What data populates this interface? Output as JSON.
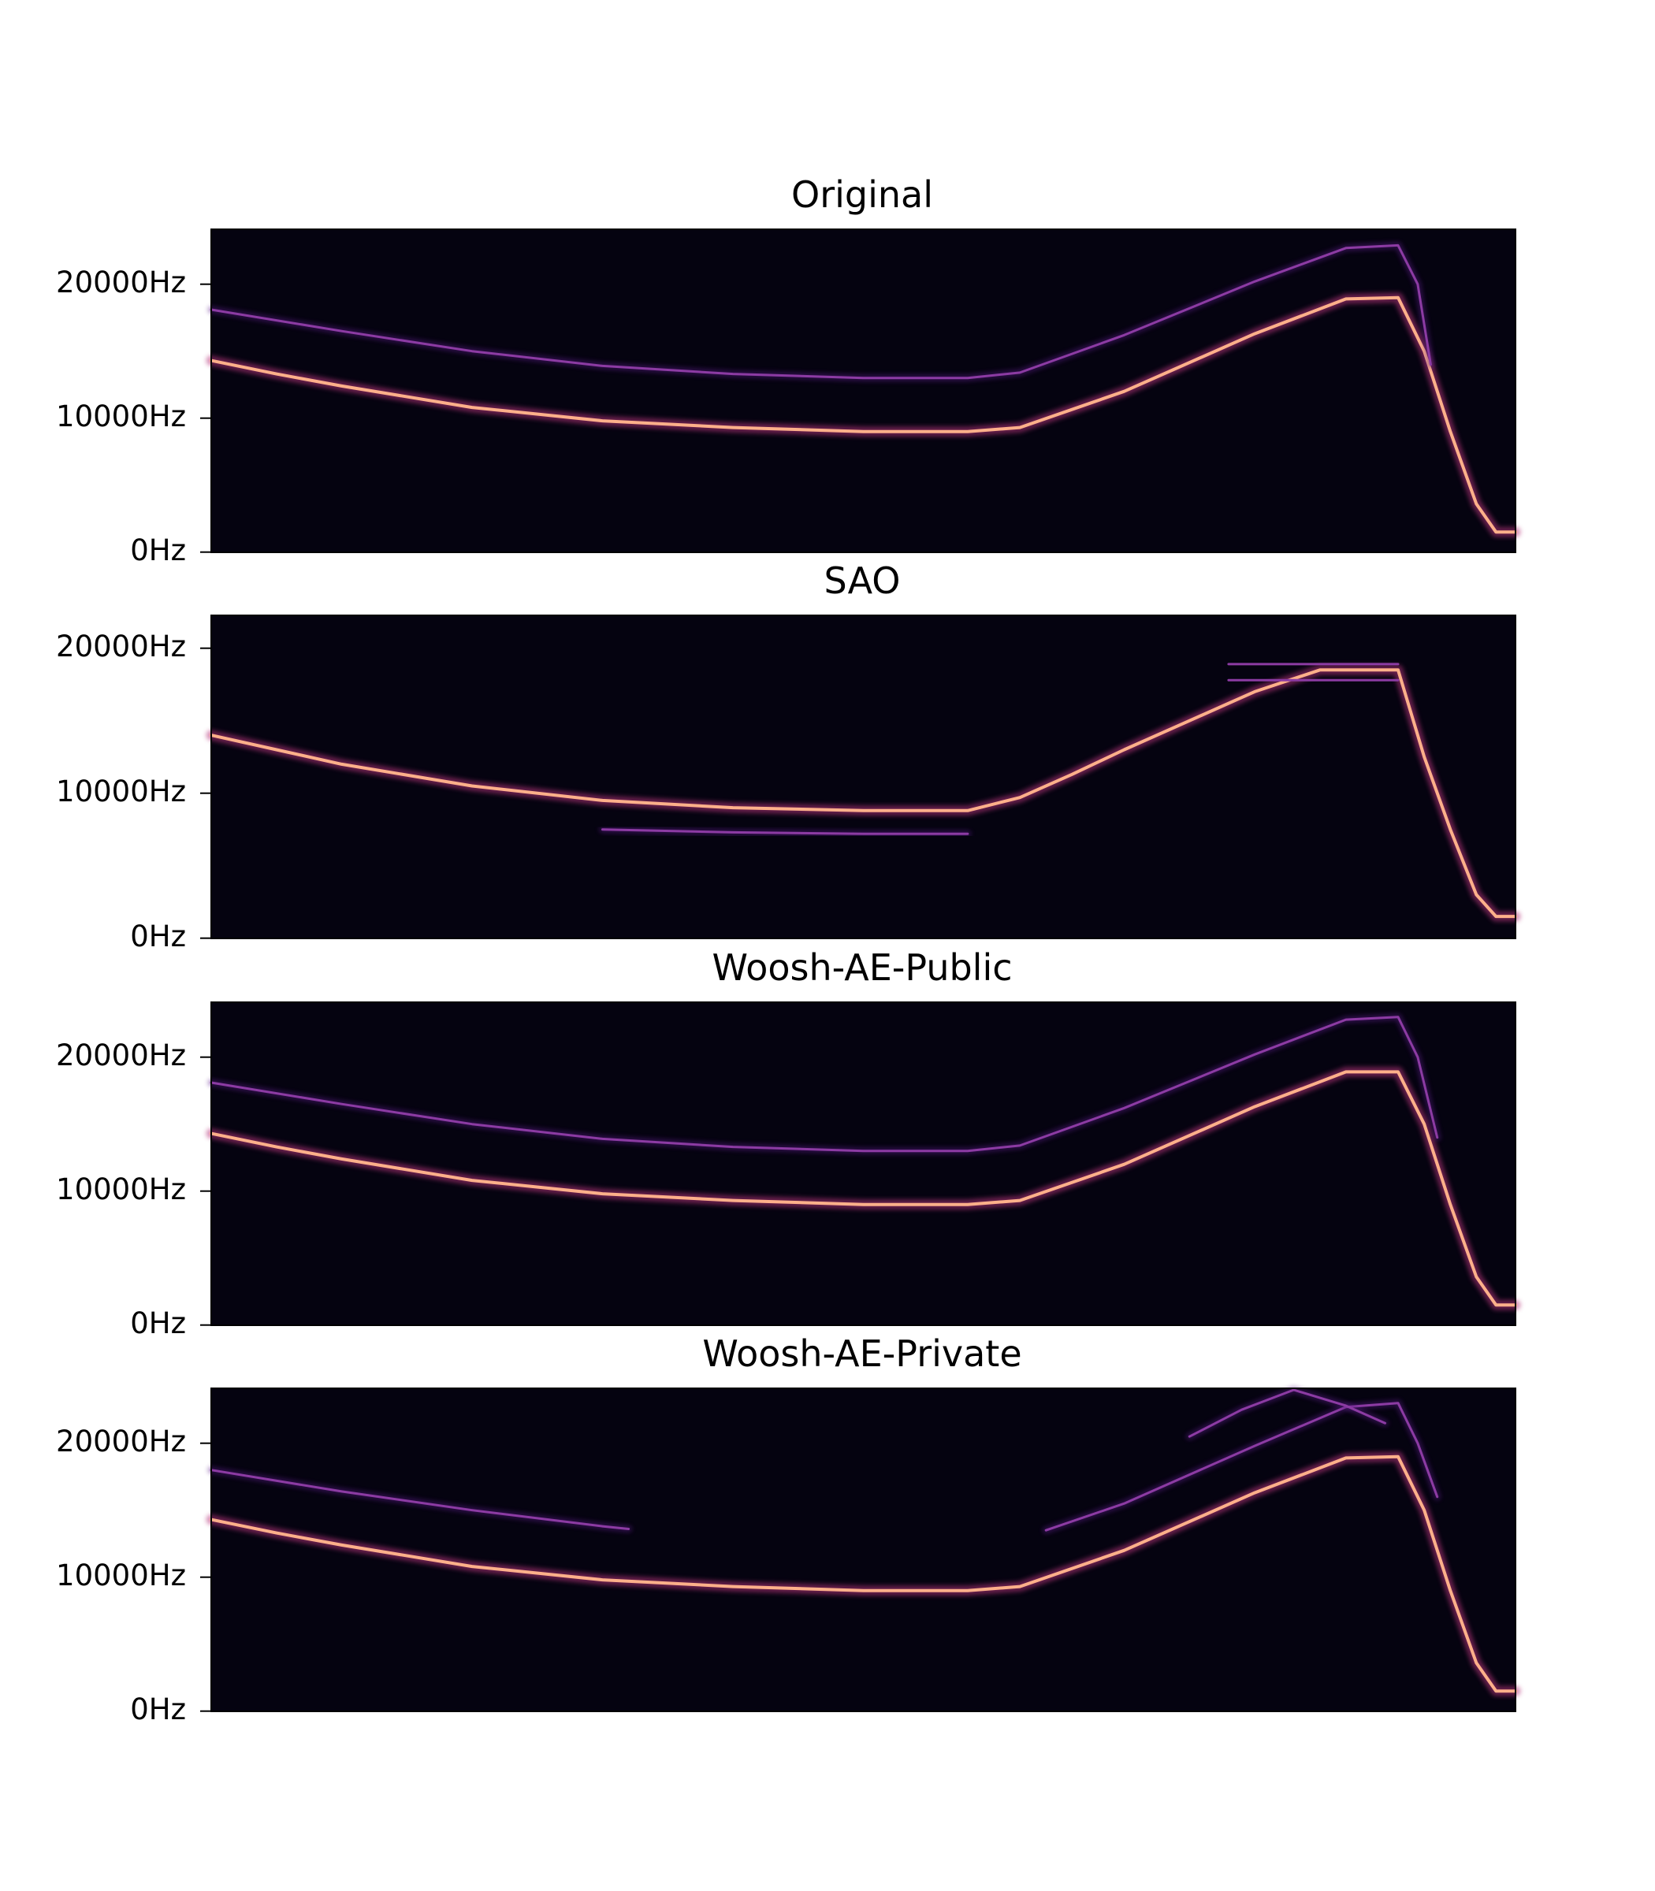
{
  "chart_data": [
    {
      "type": "spectrogram",
      "title": "Original",
      "ylabel": "",
      "ylim": [
        0,
        24000
      ],
      "yticks": [
        {
          "value": 0,
          "label": "0Hz"
        },
        {
          "value": 10000,
          "label": "10000Hz"
        },
        {
          "value": 20000,
          "label": "20000Hz"
        }
      ],
      "x_range": [
        0,
        1
      ],
      "colormap": "magma",
      "series": [
        {
          "x": [
            0,
            0.05,
            0.1,
            0.2,
            0.3,
            0.4,
            0.5,
            0.58,
            0.62,
            0.7,
            0.8,
            0.87,
            0.91,
            0.93,
            0.95,
            0.97,
            0.985,
            1.0
          ],
          "y": [
            14300,
            13300,
            12400,
            10800,
            9800,
            9300,
            9000,
            9000,
            9300,
            12000,
            16300,
            18900,
            19000,
            15000,
            9000,
            3600,
            1500,
            1500
          ],
          "intensity": "strong"
        },
        {
          "x": [
            0,
            0.1,
            0.2,
            0.3,
            0.4,
            0.5,
            0.58,
            0.62,
            0.7,
            0.8,
            0.87,
            0.91,
            0.925,
            0.935
          ],
          "y": [
            18100,
            16500,
            15000,
            13900,
            13300,
            13000,
            13000,
            13400,
            16200,
            20200,
            22700,
            22900,
            20000,
            14000
          ],
          "intensity": "weak"
        }
      ]
    },
    {
      "type": "spectrogram",
      "title": "SAO",
      "ylabel": "",
      "ylim": [
        0,
        24000
      ],
      "yticks": [
        {
          "value": 0,
          "label": "0Hz"
        },
        {
          "value": 10000,
          "label": "10000Hz"
        },
        {
          "value": 20000,
          "label": "20000Hz"
        }
      ],
      "x_range": [
        0,
        1
      ],
      "colormap": "magma",
      "series": [
        {
          "x": [
            0,
            0.05,
            0.1,
            0.2,
            0.3,
            0.4,
            0.5,
            0.58,
            0.62,
            0.66,
            0.7,
            0.75,
            0.8,
            0.85,
            0.91,
            0.93,
            0.95,
            0.97,
            0.985,
            1.0
          ],
          "y": [
            14000,
            13000,
            12000,
            10500,
            9500,
            9000,
            8800,
            8800,
            9700,
            11300,
            13000,
            15000,
            17000,
            18500,
            18500,
            12500,
            7500,
            3000,
            1500,
            1500
          ],
          "intensity": "strong"
        },
        {
          "x": [
            0.3,
            0.4,
            0.5,
            0.58
          ],
          "y": [
            7500,
            7300,
            7200,
            7200
          ],
          "intensity": "weak"
        },
        {
          "x": [
            0.78,
            0.91
          ],
          "y": [
            18900,
            18900
          ],
          "intensity": "weak"
        },
        {
          "x": [
            0.78,
            0.91
          ],
          "y": [
            17800,
            17800
          ],
          "intensity": "weak"
        }
      ]
    },
    {
      "type": "spectrogram",
      "title": "Woosh-AE-Public",
      "ylabel": "",
      "ylim": [
        0,
        24000
      ],
      "yticks": [
        {
          "value": 0,
          "label": "0Hz"
        },
        {
          "value": 10000,
          "label": "10000Hz"
        },
        {
          "value": 20000,
          "label": "20000Hz"
        }
      ],
      "x_range": [
        0,
        1
      ],
      "colormap": "magma",
      "series": [
        {
          "x": [
            0,
            0.05,
            0.1,
            0.2,
            0.3,
            0.4,
            0.5,
            0.58,
            0.62,
            0.7,
            0.8,
            0.87,
            0.91,
            0.93,
            0.95,
            0.97,
            0.985,
            1.0
          ],
          "y": [
            14300,
            13300,
            12400,
            10800,
            9800,
            9300,
            9000,
            9000,
            9300,
            12000,
            16300,
            18900,
            18900,
            15000,
            9000,
            3600,
            1500,
            1500
          ],
          "intensity": "strong"
        },
        {
          "x": [
            0,
            0.1,
            0.2,
            0.3,
            0.4,
            0.5,
            0.58,
            0.62,
            0.7,
            0.8,
            0.87,
            0.91,
            0.925,
            0.94
          ],
          "y": [
            18100,
            16500,
            15000,
            13900,
            13300,
            13000,
            13000,
            13400,
            16200,
            20200,
            22800,
            23000,
            20000,
            14000
          ],
          "intensity": "weak"
        }
      ]
    },
    {
      "type": "spectrogram",
      "title": "Woosh-AE-Private",
      "ylabel": "",
      "ylim": [
        0,
        24000
      ],
      "yticks": [
        {
          "value": 0,
          "label": "0Hz"
        },
        {
          "value": 10000,
          "label": "10000Hz"
        },
        {
          "value": 20000,
          "label": "20000Hz"
        }
      ],
      "x_range": [
        0,
        1
      ],
      "colormap": "magma",
      "series": [
        {
          "x": [
            0,
            0.05,
            0.1,
            0.2,
            0.3,
            0.4,
            0.5,
            0.58,
            0.62,
            0.7,
            0.8,
            0.87,
            0.91,
            0.93,
            0.95,
            0.97,
            0.985,
            1.0
          ],
          "y": [
            14300,
            13300,
            12400,
            10800,
            9800,
            9300,
            9000,
            9000,
            9300,
            12000,
            16300,
            18900,
            19000,
            15000,
            9000,
            3600,
            1500,
            1500
          ],
          "intensity": "strong"
        },
        {
          "x": [
            0,
            0.1,
            0.2,
            0.3,
            0.32
          ],
          "y": [
            18000,
            16400,
            15000,
            13800,
            13600
          ],
          "intensity": "weak"
        },
        {
          "x": [
            0.64,
            0.7,
            0.8,
            0.87,
            0.91,
            0.925,
            0.94
          ],
          "y": [
            13500,
            15500,
            19800,
            22700,
            23000,
            20000,
            16000
          ],
          "intensity": "weak"
        },
        {
          "x": [
            0.75,
            0.79,
            0.83,
            0.87,
            0.9
          ],
          "y": [
            20500,
            22500,
            24000,
            22800,
            21500
          ],
          "intensity": "weak"
        }
      ]
    }
  ]
}
